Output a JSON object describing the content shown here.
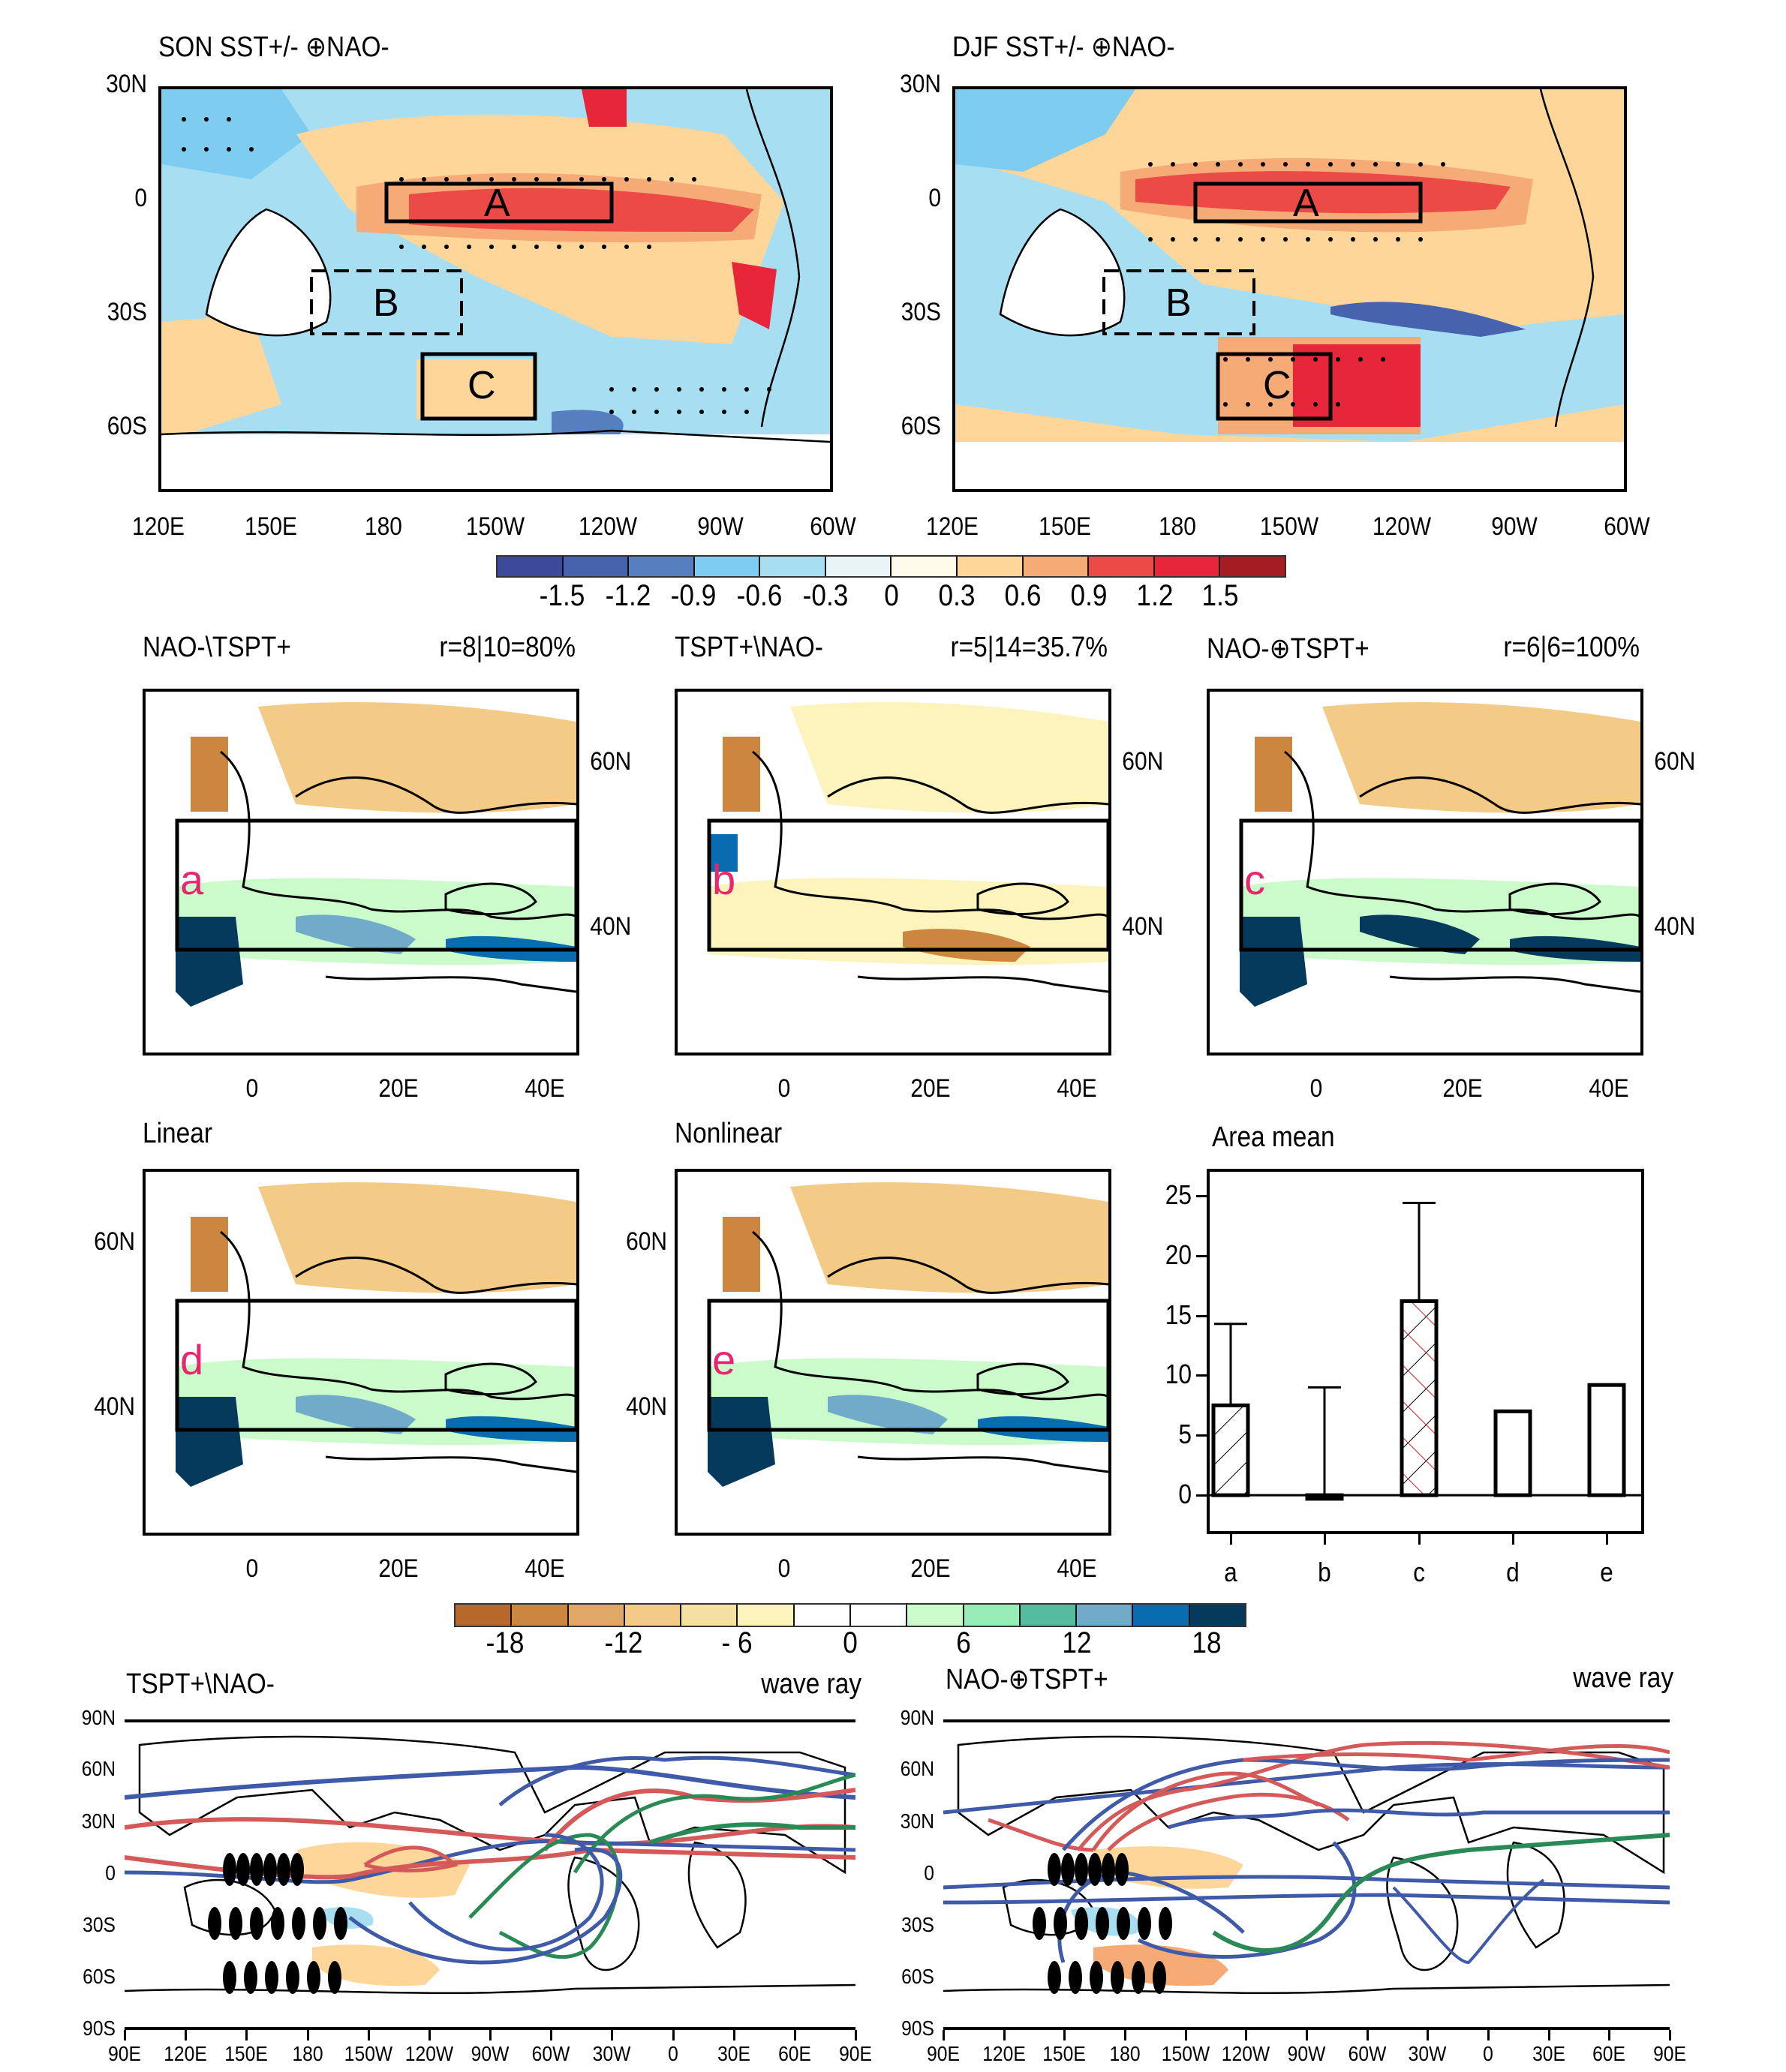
{
  "top_panels": [
    {
      "title": "SON SST+/- ⊕NAO-",
      "boxes": [
        "A",
        "B",
        "C"
      ]
    },
    {
      "title": "DJF SST+/- ⊕NAO-",
      "boxes": [
        "A",
        "B",
        "C"
      ]
    }
  ],
  "top_axes": {
    "lat_ticks": [
      "30N",
      "0",
      "30S",
      "60S"
    ],
    "lon_ticks": [
      "120E",
      "150E",
      "180",
      "150W",
      "120W",
      "90W",
      "60W"
    ]
  },
  "colorbar_sst": {
    "colors": [
      "#3d4a9c",
      "#4763ad",
      "#577fc0",
      "#7ecdf0",
      "#a8def2",
      "#e9f4f6",
      "#fffbeb",
      "#fed699",
      "#f6aa76",
      "#ec4a46",
      "#e8263a",
      "#a31d23"
    ],
    "labels": [
      "-1.5",
      "-1.2",
      "-0.9",
      "-0.6",
      "-0.3",
      "0",
      "0.3",
      "0.6",
      "0.9",
      "1.2",
      "1.5"
    ]
  },
  "europe_panels": [
    {
      "title": "NAO-\\TSPT+",
      "stat": "r=8|10=80%",
      "letter": "a"
    },
    {
      "title": "TSPT+\\NAO-",
      "stat": "r=5|14=35.7%",
      "letter": "b"
    },
    {
      "title": "NAO-⊕TSPT+",
      "stat": "r=6|6=100%",
      "letter": "c"
    },
    {
      "title": "Linear",
      "stat": "",
      "letter": "d"
    },
    {
      "title": "Nonlinear",
      "stat": "",
      "letter": "e"
    }
  ],
  "europe_axes": {
    "lat_ticks": [
      "60N",
      "40N"
    ],
    "lon_ticks": [
      "0",
      "20E",
      "40E"
    ]
  },
  "colorbar_precip": {
    "colors": [
      "#b7682a",
      "#cd8640",
      "#e0a866",
      "#f3cb87",
      "#f5e0a3",
      "#fdf3bd",
      "#ffffff",
      "#ffffff",
      "#cbfbcb",
      "#97ecb8",
      "#54bd9f",
      "#70abc9",
      "#0a6cb0",
      "#053a5c"
    ],
    "labels": [
      "-18",
      "-12",
      "- 6",
      "0",
      "6",
      "12",
      "18"
    ]
  },
  "chart_data": {
    "type": "bar",
    "title": "Area mean",
    "categories": [
      "a",
      "b",
      "c",
      "d",
      "e"
    ],
    "values": [
      7.5,
      -0.3,
      16.2,
      7.0,
      9.2
    ],
    "error_upper": [
      14.3,
      9.0,
      24.4,
      null,
      null
    ],
    "patterns": [
      "hatch-diagonal",
      "none",
      "crosshatch-red",
      "none",
      "none"
    ],
    "yticks": [
      "0",
      "5",
      "10",
      "15",
      "20",
      "25"
    ],
    "ylim": [
      -3,
      27
    ],
    "xlabel": "",
    "ylabel": "",
    "grid": false
  },
  "wave_panels": [
    {
      "title": "TSPT+\\NAO-",
      "right_label": "wave ray"
    },
    {
      "title": "NAO-⊕TSPT+",
      "right_label": "wave ray"
    }
  ],
  "wave_axes": {
    "lat_ticks": [
      "90N",
      "60N",
      "30N",
      "0",
      "30S",
      "60S",
      "90S"
    ],
    "lon_ticks": [
      "90E",
      "120E",
      "150E",
      "180",
      "150W",
      "120W",
      "90W",
      "60W",
      "30W",
      "0",
      "30E",
      "60E",
      "90E"
    ]
  },
  "ray_colors": {
    "blue": "#3f5aa8",
    "red": "#d45a5a",
    "green": "#2a8a55"
  }
}
